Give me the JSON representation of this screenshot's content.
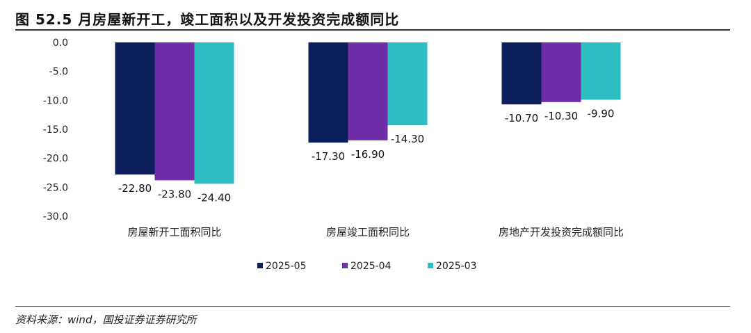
{
  "title": "图 52.5 月房屋新开工，竣工面积以及开发投资完成额同比",
  "source": "资料来源：wind，国投证券证券研究所",
  "chart_data": {
    "type": "bar",
    "categories": [
      "房屋新开工面积同比",
      "房屋竣工面积同比",
      "房地产开发投资完成额同比"
    ],
    "series": [
      {
        "name": "2025-05",
        "color": "#0b1f5c",
        "values": [
          -22.8,
          -17.3,
          -10.7
        ],
        "labels": [
          "-22.80",
          "-17.30",
          "-10.70"
        ]
      },
      {
        "name": "2025-04",
        "color": "#6f2da8",
        "values": [
          -23.8,
          -16.9,
          -10.3
        ],
        "labels": [
          "-23.80",
          "-16.90",
          "-10.30"
        ]
      },
      {
        "name": "2025-03",
        "color": "#2fbdc4",
        "values": [
          -24.4,
          -14.3,
          -9.9
        ],
        "labels": [
          "-24.40",
          "-14.30",
          "-9.90"
        ]
      }
    ],
    "yticks": [
      "0.0",
      "-5.0",
      "-10.0",
      "-15.0",
      "-20.0",
      "-25.0",
      "-30.0"
    ],
    "ylim": [
      -30,
      0
    ],
    "legend": "bottom",
    "grid": false
  }
}
